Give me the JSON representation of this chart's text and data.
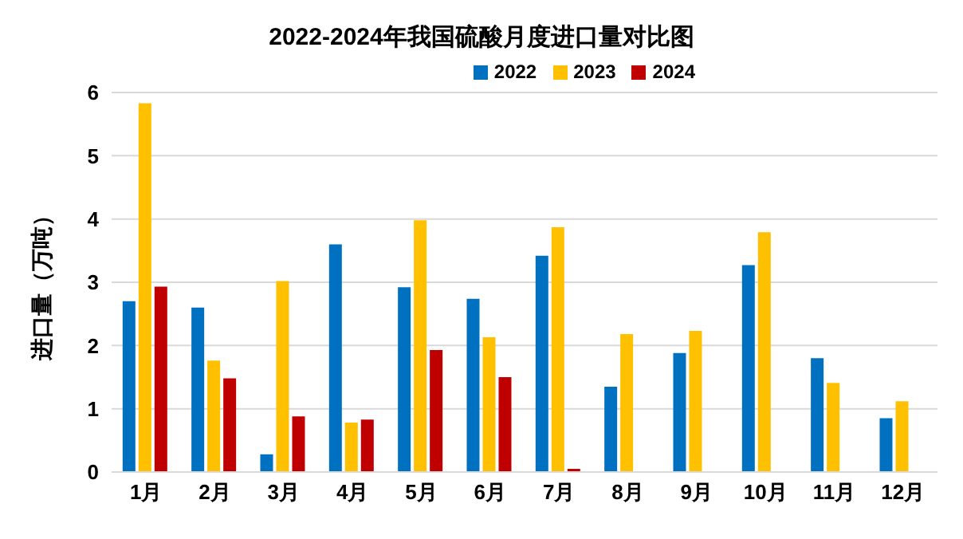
{
  "chart_data": {
    "type": "bar",
    "title": "2022-2024年我国硫酸月度进口量对比图",
    "ylabel": "进口量（万吨）",
    "categories": [
      "1月",
      "2月",
      "3月",
      "4月",
      "5月",
      "6月",
      "7月",
      "8月",
      "9月",
      "10月",
      "11月",
      "12月"
    ],
    "series": [
      {
        "name": "2022",
        "color": "#0070c0",
        "values": [
          2.7,
          2.6,
          0.28,
          3.6,
          2.92,
          2.74,
          3.42,
          1.35,
          1.88,
          3.27,
          1.8,
          0.85
        ]
      },
      {
        "name": "2023",
        "color": "#ffc000",
        "values": [
          5.83,
          1.76,
          3.02,
          0.78,
          3.98,
          2.13,
          3.87,
          2.18,
          2.23,
          3.79,
          1.41,
          1.12
        ]
      },
      {
        "name": "2024",
        "color": "#c00000",
        "values": [
          2.93,
          1.48,
          0.88,
          0.83,
          1.93,
          1.5,
          0.05,
          null,
          null,
          null,
          null,
          null
        ]
      }
    ],
    "ylim": [
      0,
      6
    ],
    "yticks": [
      0,
      1,
      2,
      3,
      4,
      5,
      6
    ],
    "grid": "y",
    "legend": "top right"
  }
}
